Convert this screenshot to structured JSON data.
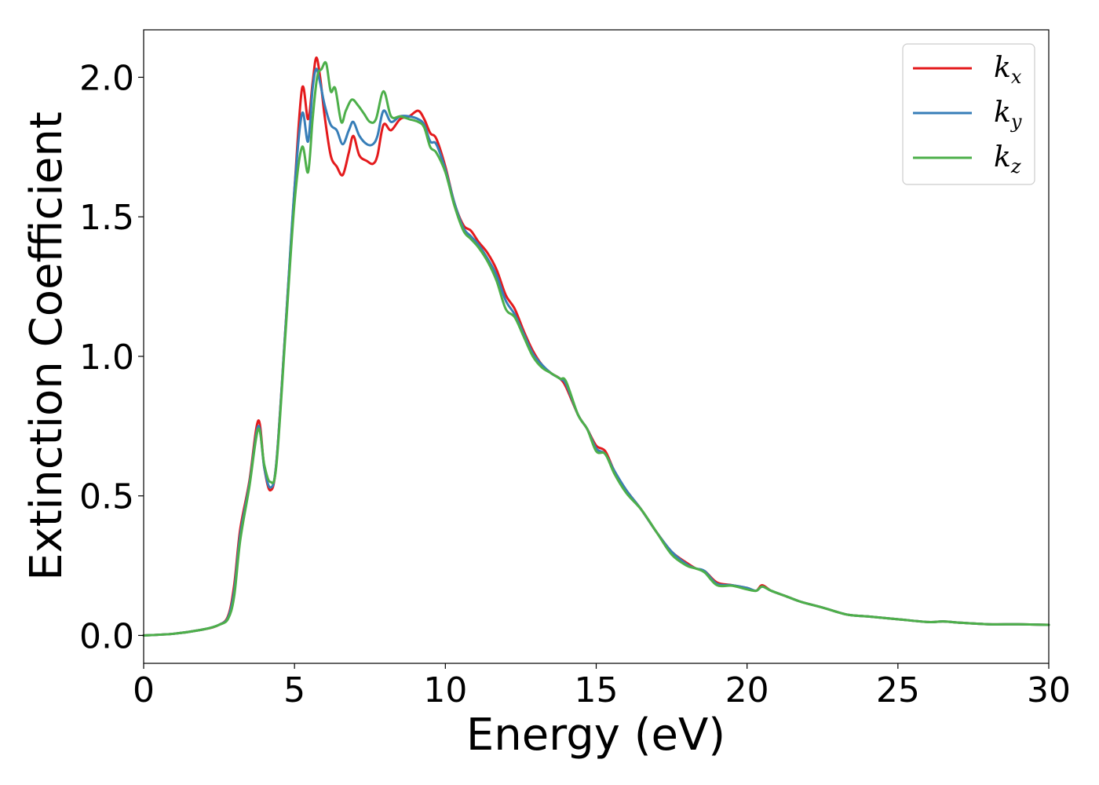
{
  "chart_data": {
    "type": "line",
    "xlabel": "Energy (eV)",
    "ylabel": "Extinction Coefficient",
    "xlim": [
      0,
      30
    ],
    "ylim": [
      -0.1,
      2.17
    ],
    "xticks": [
      0,
      5,
      10,
      15,
      20,
      25,
      30
    ],
    "xtick_labels": [
      "0",
      "5",
      "10",
      "15",
      "20",
      "25",
      "30"
    ],
    "yticks": [
      0.0,
      0.5,
      1.0,
      1.5,
      2.0
    ],
    "ytick_labels": [
      "0.0",
      "0.5",
      "1.0",
      "1.5",
      "2.0"
    ],
    "grid": false,
    "legend_placement": "top-right",
    "series": [
      {
        "name": "k_x",
        "label_main": "k",
        "label_sub": "x",
        "color": "#e41a1c",
        "points": [
          [
            0,
            0.0
          ],
          [
            1,
            0.006
          ],
          [
            2,
            0.022
          ],
          [
            2.5,
            0.038
          ],
          [
            2.8,
            0.07
          ],
          [
            3.0,
            0.18
          ],
          [
            3.2,
            0.38
          ],
          [
            3.5,
            0.55
          ],
          [
            3.8,
            0.77
          ],
          [
            4.0,
            0.6
          ],
          [
            4.2,
            0.52
          ],
          [
            4.4,
            0.62
          ],
          [
            4.7,
            1.1
          ],
          [
            5.0,
            1.6
          ],
          [
            5.25,
            1.96
          ],
          [
            5.45,
            1.85
          ],
          [
            5.6,
            1.98
          ],
          [
            5.72,
            2.07
          ],
          [
            5.85,
            2.0
          ],
          [
            6.0,
            1.86
          ],
          [
            6.2,
            1.72
          ],
          [
            6.4,
            1.68
          ],
          [
            6.6,
            1.65
          ],
          [
            6.8,
            1.73
          ],
          [
            6.95,
            1.79
          ],
          [
            7.15,
            1.72
          ],
          [
            7.4,
            1.7
          ],
          [
            7.6,
            1.69
          ],
          [
            7.75,
            1.72
          ],
          [
            7.95,
            1.83
          ],
          [
            8.2,
            1.81
          ],
          [
            8.5,
            1.85
          ],
          [
            8.8,
            1.86
          ],
          [
            9.1,
            1.88
          ],
          [
            9.3,
            1.85
          ],
          [
            9.5,
            1.8
          ],
          [
            9.7,
            1.78
          ],
          [
            10.0,
            1.68
          ],
          [
            10.3,
            1.55
          ],
          [
            10.6,
            1.47
          ],
          [
            10.85,
            1.45
          ],
          [
            11.1,
            1.41
          ],
          [
            11.4,
            1.37
          ],
          [
            11.7,
            1.31
          ],
          [
            12.0,
            1.22
          ],
          [
            12.3,
            1.17
          ],
          [
            12.6,
            1.09
          ],
          [
            12.9,
            1.02
          ],
          [
            13.2,
            0.97
          ],
          [
            13.5,
            0.94
          ],
          [
            13.8,
            0.92
          ],
          [
            14.0,
            0.89
          ],
          [
            14.4,
            0.79
          ],
          [
            14.7,
            0.74
          ],
          [
            15.0,
            0.68
          ],
          [
            15.3,
            0.66
          ],
          [
            15.6,
            0.59
          ],
          [
            16.0,
            0.52
          ],
          [
            16.5,
            0.45
          ],
          [
            17.0,
            0.37
          ],
          [
            17.5,
            0.3
          ],
          [
            18.0,
            0.26
          ],
          [
            18.3,
            0.24
          ],
          [
            18.6,
            0.23
          ],
          [
            19.0,
            0.19
          ],
          [
            19.5,
            0.18
          ],
          [
            20.0,
            0.17
          ],
          [
            20.3,
            0.16
          ],
          [
            20.5,
            0.18
          ],
          [
            20.8,
            0.16
          ],
          [
            21.3,
            0.14
          ],
          [
            21.8,
            0.12
          ],
          [
            22.5,
            0.1
          ],
          [
            23.3,
            0.075
          ],
          [
            24.0,
            0.068
          ],
          [
            25.0,
            0.058
          ],
          [
            26.0,
            0.048
          ],
          [
            26.5,
            0.05
          ],
          [
            27.0,
            0.046
          ],
          [
            28.0,
            0.04
          ],
          [
            29.0,
            0.04
          ],
          [
            30.0,
            0.038
          ]
        ]
      },
      {
        "name": "k_y",
        "label_main": "k",
        "label_sub": "y",
        "color": "#377eb8",
        "points": [
          [
            0,
            0.0
          ],
          [
            1,
            0.006
          ],
          [
            2,
            0.022
          ],
          [
            2.5,
            0.038
          ],
          [
            2.8,
            0.065
          ],
          [
            3.0,
            0.16
          ],
          [
            3.2,
            0.36
          ],
          [
            3.5,
            0.54
          ],
          [
            3.8,
            0.75
          ],
          [
            4.0,
            0.6
          ],
          [
            4.2,
            0.53
          ],
          [
            4.4,
            0.62
          ],
          [
            4.7,
            1.1
          ],
          [
            5.0,
            1.6
          ],
          [
            5.25,
            1.87
          ],
          [
            5.45,
            1.77
          ],
          [
            5.6,
            1.96
          ],
          [
            5.72,
            2.03
          ],
          [
            5.85,
            1.98
          ],
          [
            6.0,
            1.9
          ],
          [
            6.2,
            1.83
          ],
          [
            6.4,
            1.81
          ],
          [
            6.6,
            1.76
          ],
          [
            6.8,
            1.81
          ],
          [
            6.95,
            1.84
          ],
          [
            7.15,
            1.79
          ],
          [
            7.4,
            1.76
          ],
          [
            7.6,
            1.76
          ],
          [
            7.75,
            1.79
          ],
          [
            7.95,
            1.88
          ],
          [
            8.2,
            1.84
          ],
          [
            8.5,
            1.86
          ],
          [
            8.8,
            1.86
          ],
          [
            9.1,
            1.85
          ],
          [
            9.3,
            1.83
          ],
          [
            9.5,
            1.77
          ],
          [
            9.7,
            1.76
          ],
          [
            10.0,
            1.67
          ],
          [
            10.3,
            1.55
          ],
          [
            10.6,
            1.46
          ],
          [
            10.85,
            1.43
          ],
          [
            11.1,
            1.4
          ],
          [
            11.4,
            1.35
          ],
          [
            11.7,
            1.29
          ],
          [
            12.0,
            1.2
          ],
          [
            12.3,
            1.15
          ],
          [
            12.6,
            1.08
          ],
          [
            12.9,
            1.01
          ],
          [
            13.2,
            0.97
          ],
          [
            13.5,
            0.94
          ],
          [
            13.8,
            0.92
          ],
          [
            14.0,
            0.9
          ],
          [
            14.4,
            0.79
          ],
          [
            14.7,
            0.74
          ],
          [
            15.0,
            0.67
          ],
          [
            15.3,
            0.65
          ],
          [
            15.6,
            0.59
          ],
          [
            16.0,
            0.52
          ],
          [
            16.5,
            0.45
          ],
          [
            17.0,
            0.37
          ],
          [
            17.5,
            0.3
          ],
          [
            18.0,
            0.255
          ],
          [
            18.3,
            0.24
          ],
          [
            18.6,
            0.23
          ],
          [
            19.0,
            0.185
          ],
          [
            19.5,
            0.18
          ],
          [
            20.0,
            0.17
          ],
          [
            20.3,
            0.16
          ],
          [
            20.5,
            0.175
          ],
          [
            20.8,
            0.16
          ],
          [
            21.3,
            0.14
          ],
          [
            21.8,
            0.12
          ],
          [
            22.5,
            0.1
          ],
          [
            23.3,
            0.075
          ],
          [
            24.0,
            0.068
          ],
          [
            25.0,
            0.058
          ],
          [
            26.0,
            0.048
          ],
          [
            26.5,
            0.05
          ],
          [
            27.0,
            0.046
          ],
          [
            28.0,
            0.04
          ],
          [
            29.0,
            0.04
          ],
          [
            30.0,
            0.038
          ]
        ]
      },
      {
        "name": "k_z",
        "label_main": "k",
        "label_sub": "z",
        "color": "#4daf4a",
        "points": [
          [
            0,
            0.0
          ],
          [
            1,
            0.006
          ],
          [
            2,
            0.022
          ],
          [
            2.5,
            0.038
          ],
          [
            2.8,
            0.06
          ],
          [
            3.0,
            0.14
          ],
          [
            3.2,
            0.34
          ],
          [
            3.5,
            0.53
          ],
          [
            3.8,
            0.74
          ],
          [
            4.0,
            0.61
          ],
          [
            4.2,
            0.55
          ],
          [
            4.4,
            0.61
          ],
          [
            4.7,
            1.08
          ],
          [
            5.0,
            1.55
          ],
          [
            5.25,
            1.75
          ],
          [
            5.45,
            1.66
          ],
          [
            5.6,
            1.85
          ],
          [
            5.75,
            2.0
          ],
          [
            5.9,
            2.03
          ],
          [
            6.05,
            2.05
          ],
          [
            6.2,
            1.95
          ],
          [
            6.35,
            1.96
          ],
          [
            6.55,
            1.84
          ],
          [
            6.7,
            1.88
          ],
          [
            6.9,
            1.92
          ],
          [
            7.1,
            1.9
          ],
          [
            7.3,
            1.87
          ],
          [
            7.5,
            1.84
          ],
          [
            7.7,
            1.85
          ],
          [
            7.95,
            1.95
          ],
          [
            8.2,
            1.86
          ],
          [
            8.5,
            1.86
          ],
          [
            8.8,
            1.85
          ],
          [
            9.1,
            1.84
          ],
          [
            9.3,
            1.82
          ],
          [
            9.5,
            1.75
          ],
          [
            9.7,
            1.73
          ],
          [
            10.0,
            1.66
          ],
          [
            10.3,
            1.54
          ],
          [
            10.6,
            1.45
          ],
          [
            10.85,
            1.42
          ],
          [
            11.1,
            1.39
          ],
          [
            11.4,
            1.34
          ],
          [
            11.7,
            1.27
          ],
          [
            12.0,
            1.17
          ],
          [
            12.3,
            1.14
          ],
          [
            12.6,
            1.07
          ],
          [
            12.9,
            1.0
          ],
          [
            13.2,
            0.96
          ],
          [
            13.5,
            0.94
          ],
          [
            13.8,
            0.92
          ],
          [
            14.0,
            0.91
          ],
          [
            14.4,
            0.79
          ],
          [
            14.7,
            0.74
          ],
          [
            15.0,
            0.66
          ],
          [
            15.3,
            0.65
          ],
          [
            15.6,
            0.58
          ],
          [
            16.0,
            0.51
          ],
          [
            16.5,
            0.45
          ],
          [
            17.0,
            0.37
          ],
          [
            17.5,
            0.29
          ],
          [
            18.0,
            0.25
          ],
          [
            18.3,
            0.24
          ],
          [
            18.6,
            0.225
          ],
          [
            19.0,
            0.18
          ],
          [
            19.5,
            0.178
          ],
          [
            20.0,
            0.165
          ],
          [
            20.3,
            0.16
          ],
          [
            20.5,
            0.175
          ],
          [
            20.8,
            0.16
          ],
          [
            21.3,
            0.14
          ],
          [
            21.8,
            0.12
          ],
          [
            22.5,
            0.1
          ],
          [
            23.3,
            0.075
          ],
          [
            24.0,
            0.068
          ],
          [
            25.0,
            0.058
          ],
          [
            26.0,
            0.048
          ],
          [
            26.5,
            0.05
          ],
          [
            27.0,
            0.046
          ],
          [
            28.0,
            0.04
          ],
          [
            29.0,
            0.04
          ],
          [
            30.0,
            0.038
          ]
        ]
      }
    ]
  }
}
